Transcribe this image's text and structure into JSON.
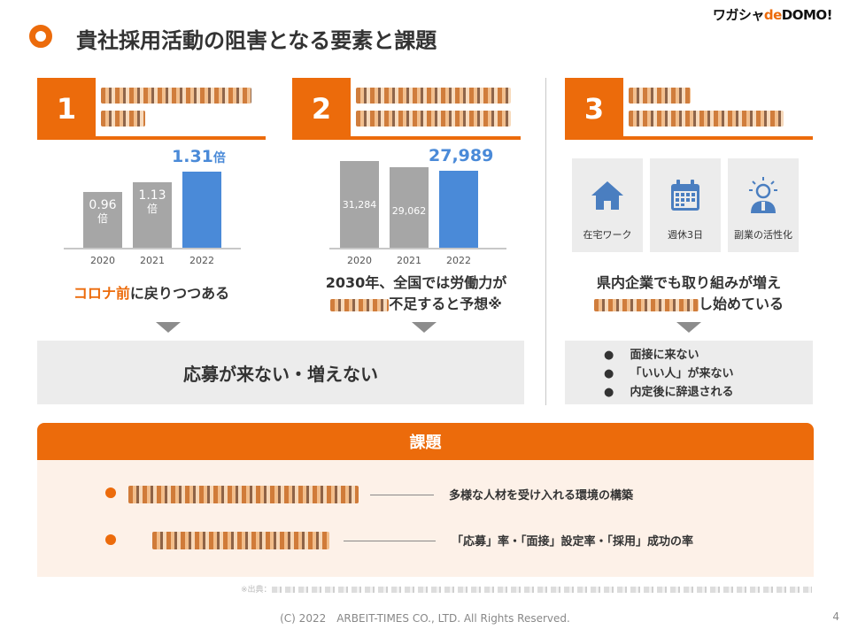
{
  "header": {
    "title": "貴社採用活動の阻害となる要素と課題",
    "logo": {
      "left": "ワガシャ",
      "mid": "de",
      "right": "DOMO!"
    }
  },
  "columns": [
    {
      "number": "1"
    },
    {
      "number": "2"
    },
    {
      "number": "3"
    }
  ],
  "chart_data": [
    {
      "type": "bar",
      "categories": [
        "2020",
        "2021",
        "2022"
      ],
      "values": [
        0.96,
        1.13,
        1.31
      ],
      "data_labels": [
        "0.96",
        "1.13",
        "1.31"
      ],
      "unit": "倍",
      "colors": [
        "#a6a6a6",
        "#a6a6a6",
        "#4a8ad8"
      ],
      "ylim": [
        0,
        1.5
      ]
    },
    {
      "type": "bar",
      "categories": [
        "2020",
        "2021",
        "2022"
      ],
      "values": [
        31284,
        29062,
        27989
      ],
      "data_labels": [
        "31,284",
        "29,062",
        "27,989"
      ],
      "colors": [
        "#a6a6a6",
        "#a6a6a6",
        "#4a8ad8"
      ],
      "ylim": [
        0,
        40000
      ]
    }
  ],
  "col1": {
    "caption_orange": "コロナ前",
    "caption_rest": "に戻りつつある"
  },
  "col2": {
    "caption_line1": "2030年、全国では労働力が",
    "caption_line2": "不足すると予想※"
  },
  "col3": {
    "icons": [
      {
        "icon": "house-icon",
        "label": "在宅ワーク"
      },
      {
        "icon": "calendar-icon",
        "label": "週休3日"
      },
      {
        "icon": "person-idea-icon",
        "label": "副業の活性化"
      }
    ],
    "caption_line1": "県内企業でも取り組みが増え",
    "caption_line2": "し始めている",
    "bullets": [
      "面接に来ない",
      "「いい人」が来ない",
      "内定後に辞退される"
    ]
  },
  "result_box": "応募が来ない・増えない",
  "kadai": {
    "title": "課題",
    "items": [
      {
        "text": "多様な人材を受け入れる環境の構築"
      },
      {
        "text": "「応募」率・「面接」設定率・「採用」成功の率"
      }
    ]
  },
  "source_prefix": "※出典：",
  "footer": "(C) 2022　ARBEIT-TIMES CO., LTD. All Rights Reserved.",
  "page_number": "4",
  "accent": "#ec6b0b",
  "highlight": "#4a8ad8"
}
